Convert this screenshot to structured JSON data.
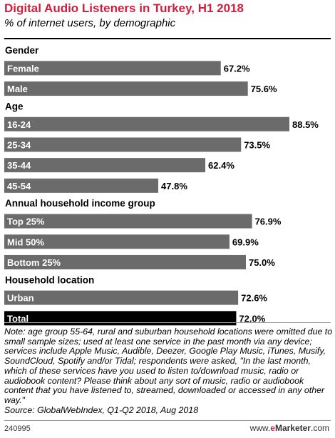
{
  "title": "Digital Audio Listeners in Turkey, H1 2018",
  "subtitle": "% of internet users, by demographic",
  "note": "Note: age group 55-64, rural and suburban household locations were omitted due to small sample sizes; used at least one service in the past month via any device; services include Apple Music, Audible, Deezer, Google Play Music, iTunes, Musify, SoundCloud, Spotify and/or Tidal; respondents were asked, \"In the last month, which of these services have you used to listen to/download music, radio or audiobook content? Please think about any sort of music, radio or audiobook content that you have listened to, streamed, downloaded or accessed in any other way.\"",
  "source": "Source: GlobalWebIndex, Q1-Q2 2018, Aug 2018",
  "footer": {
    "chart_id": "240995",
    "brand_prefix": "www.",
    "brand_e": "e",
    "brand_name": "Marketer",
    "brand_suffix": ".com"
  },
  "colors": {
    "title": "#d01f3c",
    "bar": "#6b6b6b",
    "total_bar": "#000000",
    "bar_label": "#ffffff"
  },
  "chart_data": {
    "type": "bar",
    "orientation": "horizontal",
    "unit": "%",
    "xlim": [
      0,
      88.5
    ],
    "groups": [
      {
        "name": "Gender",
        "categories": [
          "Female",
          "Male"
        ],
        "values": [
          67.2,
          75.6
        ]
      },
      {
        "name": "Age",
        "categories": [
          "16-24",
          "25-34",
          "35-44",
          "45-54"
        ],
        "values": [
          88.5,
          73.5,
          62.4,
          47.8
        ]
      },
      {
        "name": "Annual household income group",
        "categories": [
          "Top 25%",
          "Mid 50%",
          "Bottom 25%"
        ],
        "values": [
          76.9,
          69.9,
          75.0
        ]
      },
      {
        "name": "Household location",
        "categories": [
          "Urban"
        ],
        "values": [
          72.6
        ]
      },
      {
        "name": "",
        "categories": [
          "Total"
        ],
        "values": [
          72.0
        ],
        "highlight": true
      }
    ]
  }
}
